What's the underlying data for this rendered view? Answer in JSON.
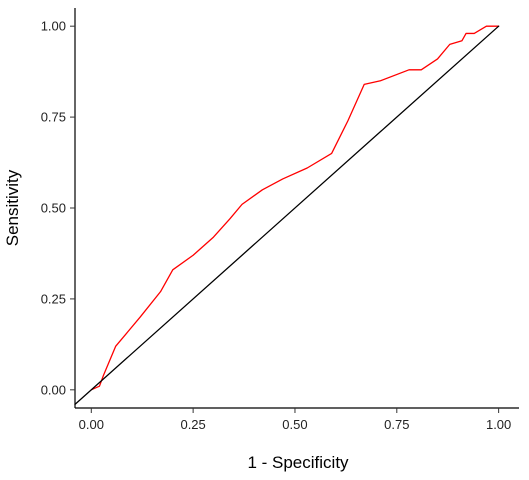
{
  "chart_data": {
    "type": "line",
    "xlabel": "1 - Specificity",
    "ylabel": "Sensitivity",
    "xlim": [
      -0.04,
      1.05
    ],
    "ylim": [
      -0.05,
      1.05
    ],
    "x_ticks": [
      0,
      0.25,
      0.5,
      0.75,
      1
    ],
    "x_tick_labels": [
      "0.00",
      "0.25",
      "0.50",
      "0.75",
      "1.00"
    ],
    "y_ticks": [
      0,
      0.25,
      0.5,
      0.75,
      1
    ],
    "y_tick_labels": [
      "0.00",
      "0.25",
      "0.50",
      "0.75",
      "1.00"
    ],
    "grid": false,
    "series": [
      {
        "color": "#ff0000",
        "x": [
          0,
          0.02,
          0.03,
          0.06,
          0.09,
          0.12,
          0.17,
          0.2,
          0.25,
          0.3,
          0.34,
          0.37,
          0.42,
          0.47,
          0.53,
          0.59,
          0.63,
          0.67,
          0.71,
          0.78,
          0.81,
          0.85,
          0.88,
          0.91,
          0.92,
          0.94,
          0.97,
          1.0
        ],
        "y": [
          0,
          0.01,
          0.04,
          0.12,
          0.16,
          0.2,
          0.27,
          0.33,
          0.37,
          0.42,
          0.47,
          0.51,
          0.55,
          0.58,
          0.61,
          0.65,
          0.74,
          0.84,
          0.85,
          0.88,
          0.88,
          0.91,
          0.95,
          0.96,
          0.98,
          0.98,
          1.0,
          1.0
        ]
      },
      {
        "color": "#000000",
        "x": [
          -0.04,
          1.0
        ],
        "y": [
          -0.04,
          1.0
        ]
      }
    ]
  }
}
